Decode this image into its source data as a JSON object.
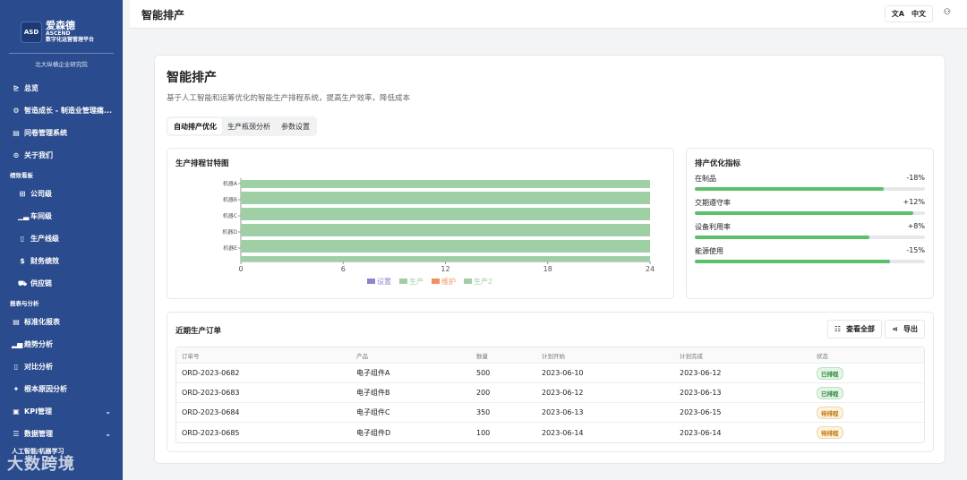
{
  "brand": {
    "logo": "ASD",
    "name": "爱森德",
    "en": "ASCEND",
    "sub": "数字化运营管理平台",
    "org": "北大纵横企业研究院"
  },
  "sidebar": {
    "items": [
      {
        "label": "总览",
        "icon": "chart-icon"
      },
      {
        "label": "智造成长 - 制造业管理痛...",
        "icon": "settings-icon"
      },
      {
        "label": "问卷管理系统",
        "icon": "survey-icon"
      },
      {
        "label": "关于我们",
        "icon": "info-icon"
      }
    ],
    "section_performance": "绩效看板",
    "performance_items": [
      {
        "label": "公司级",
        "icon": "grid-icon"
      },
      {
        "label": "车间级",
        "icon": "bar-chart-icon"
      },
      {
        "label": "生产线级",
        "icon": "document-icon"
      },
      {
        "label": "财务绩效",
        "icon": "dollar-icon"
      },
      {
        "label": "供应链",
        "icon": "truck-icon"
      }
    ],
    "section_reports": "报表与分析",
    "report_items": [
      {
        "label": "标准化报表",
        "icon": "report-icon"
      },
      {
        "label": "趋势分析",
        "icon": "trend-icon"
      },
      {
        "label": "对比分析",
        "icon": "compare-icon"
      },
      {
        "label": "根本原因分析",
        "icon": "sparkle-icon"
      }
    ],
    "kpi": "KPI管理",
    "data_mgmt": "数据管理",
    "cutoff": "人工智能/机器学习"
  },
  "watermark": "大数跨境",
  "header": {
    "title": "智能排产",
    "lang": "中文"
  },
  "page": {
    "title": "智能排产",
    "description": "基于人工智能和运筹优化的智能生产排程系统，提高生产效率，降低成本",
    "tabs": [
      "自动排产优化",
      "生产瓶颈分析",
      "参数设置"
    ]
  },
  "gantt": {
    "title": "生产排程甘特图"
  },
  "chart_data": {
    "type": "bar",
    "orientation": "horizontal",
    "categories": [
      "机器A",
      "机器B",
      "机器C",
      "机器D",
      "机器E"
    ],
    "series": [
      {
        "name": "设置",
        "color": "#8b86c9",
        "values": [
          0,
          0,
          0,
          0,
          0
        ]
      },
      {
        "name": "生产",
        "color": "#9fd0a5",
        "values": [
          24,
          24,
          24,
          24,
          24
        ]
      },
      {
        "name": "维护",
        "color": "#f0915a",
        "values": [
          0,
          0,
          0,
          0,
          0
        ]
      },
      {
        "name": "生产2",
        "color": "#9fd0a5",
        "values": [
          24,
          24,
          24,
          24,
          24
        ]
      }
    ],
    "xlim": [
      0,
      24
    ],
    "xticks": [
      0,
      6,
      12,
      18,
      24
    ],
    "legend_position": "bottom"
  },
  "metrics": {
    "title": "排产优化指标",
    "items": [
      {
        "label": "在制品",
        "value": "-18%",
        "fill": 0.82
      },
      {
        "label": "交期遵守率",
        "value": "+12%",
        "fill": 0.95
      },
      {
        "label": "设备利用率",
        "value": "+8%",
        "fill": 0.76
      },
      {
        "label": "能源使用",
        "value": "-15%",
        "fill": 0.85
      }
    ],
    "bar_color": "#5cbf6c"
  },
  "orders": {
    "title": "近期生产订单",
    "view_all": "查看全部",
    "export": "导出",
    "columns": [
      "订单号",
      "产品",
      "数量",
      "计划开始",
      "计划完成",
      "状态"
    ],
    "rows": [
      [
        "ORD-2023-0682",
        "电子组件A",
        "500",
        "2023-06-10",
        "2023-06-12",
        "已排程"
      ],
      [
        "ORD-2023-0683",
        "电子组件B",
        "200",
        "2023-06-12",
        "2023-06-13",
        "已排程"
      ],
      [
        "ORD-2023-0684",
        "电子组件C",
        "350",
        "2023-06-13",
        "2023-06-15",
        "待排程"
      ],
      [
        "ORD-2023-0685",
        "电子组件D",
        "100",
        "2023-06-14",
        "2023-06-14",
        "待排程"
      ]
    ]
  }
}
